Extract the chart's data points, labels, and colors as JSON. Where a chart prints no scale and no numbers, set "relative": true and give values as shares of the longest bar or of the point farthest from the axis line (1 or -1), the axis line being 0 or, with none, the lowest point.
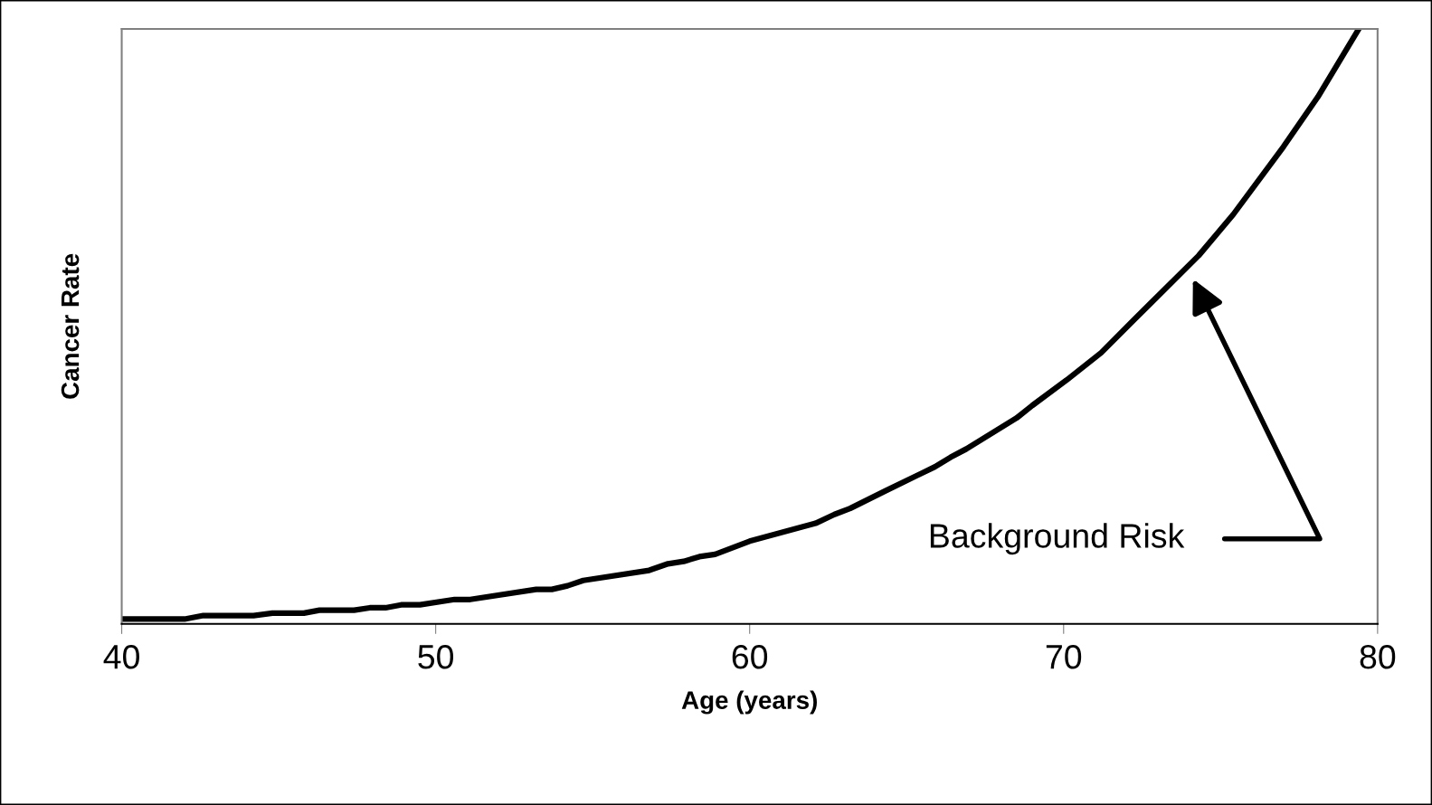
{
  "chart_data": {
    "type": "line",
    "relative": true,
    "xlabel": "Age (years)",
    "ylabel": "Cancer Rate",
    "xlim": [
      40,
      80
    ],
    "xticks": [
      40,
      50,
      60,
      70,
      80
    ],
    "grid": false,
    "legend": false,
    "marker": "none",
    "line_style": "solid",
    "series": [
      {
        "color": "#000000",
        "x": [
          40,
          42.0,
          42.6,
          44.2,
          44.8,
          45.8,
          46.3,
          47.4,
          47.9,
          48.4,
          48.9,
          49.5,
          50.6,
          51.1,
          53.2,
          53.7,
          54.2,
          54.7,
          56.8,
          57.4,
          57.9,
          58.4,
          58.9,
          60.0,
          62.1,
          62.7,
          63.2,
          64.3,
          65.9,
          66.4,
          66.9,
          68.5,
          69.0,
          70.1,
          71.2,
          72.2,
          74.3,
          75.4,
          77.0,
          78.1,
          79.4
        ],
        "values": [
          0.008,
          0.008,
          0.014,
          0.014,
          0.018,
          0.018,
          0.023,
          0.023,
          0.027,
          0.027,
          0.032,
          0.032,
          0.041,
          0.041,
          0.058,
          0.058,
          0.064,
          0.073,
          0.09,
          0.101,
          0.105,
          0.113,
          0.117,
          0.139,
          0.169,
          0.184,
          0.194,
          0.223,
          0.264,
          0.28,
          0.294,
          0.346,
          0.367,
          0.41,
          0.456,
          0.509,
          0.619,
          0.688,
          0.802,
          0.886,
          1.0
        ]
      }
    ],
    "annotations": [
      "Background Risk"
    ]
  }
}
